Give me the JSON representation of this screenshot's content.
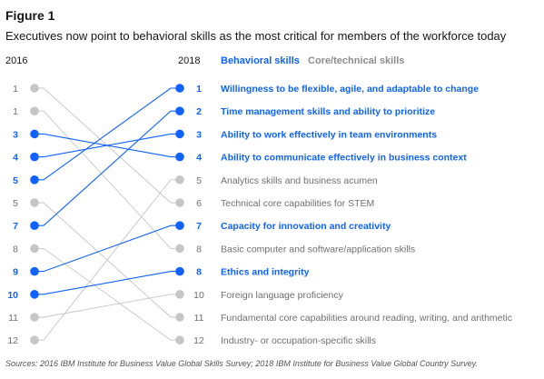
{
  "figure_label": "Figure 1",
  "title": "Executives now point to behavioral skills as the most critical for members of the workforce today",
  "year_left": "2016",
  "year_right": "2018",
  "legend": {
    "behavioral": "Behavioral skills",
    "core": "Core/technical skills"
  },
  "colors": {
    "behavioral": "#0f62fe",
    "core": "#c6c6c6",
    "core_text": "#6f6f6f"
  },
  "source": "Sources: 2016 IBM Institute for Business Value Global Skills Survey; 2018 IBM Institute for Business Value Global Country Survey.",
  "chart_data": {
    "type": "slope",
    "rank_labels_2016": [
      "1",
      "1",
      "3",
      "4",
      "5",
      "5",
      "7",
      "8",
      "9",
      "10",
      "11",
      "12"
    ],
    "rank_labels_2018": [
      "1",
      "2",
      "3",
      "4",
      "5",
      "6",
      "7",
      "8",
      "8",
      "10",
      "11",
      "12"
    ],
    "skills": [
      {
        "name": "Willingness to be flexible, agile, and adaptable to change",
        "category": "behavioral",
        "rank_2016": 5,
        "rank_2018": 1,
        "left_row": 5,
        "right_row": 1
      },
      {
        "name": "Time management skills and ability to prioritize",
        "category": "behavioral",
        "rank_2016": 7,
        "rank_2018": 2,
        "left_row": 7,
        "right_row": 2
      },
      {
        "name": "Ability to work effectively in team environments",
        "category": "behavioral",
        "rank_2016": 4,
        "rank_2018": 3,
        "left_row": 4,
        "right_row": 3
      },
      {
        "name": "Ability to communicate effectively in business context",
        "category": "behavioral",
        "rank_2016": 3,
        "rank_2018": 4,
        "left_row": 3,
        "right_row": 4
      },
      {
        "name": "Analytics skills and business acumen",
        "category": "core",
        "rank_2016": 12,
        "rank_2018": 5,
        "left_row": 12,
        "right_row": 5
      },
      {
        "name": "Technical core capabilities for STEM",
        "category": "core",
        "rank_2016": 1,
        "rank_2018": 6,
        "left_row": 1,
        "right_row": 6
      },
      {
        "name": "Capacity for innovation and creativity",
        "category": "behavioral",
        "rank_2016": 9,
        "rank_2018": 7,
        "left_row": 9,
        "right_row": 7
      },
      {
        "name": "Basic computer and software/application skills",
        "category": "core",
        "rank_2016": 1,
        "rank_2018": 8,
        "left_row": 2,
        "right_row": 8
      },
      {
        "name": "Ethics and integrity",
        "category": "behavioral",
        "rank_2016": 10,
        "rank_2018": 8,
        "left_row": 10,
        "right_row": 9
      },
      {
        "name": "Foreign language proficiency",
        "category": "core",
        "rank_2016": 11,
        "rank_2018": 10,
        "left_row": 11,
        "right_row": 10
      },
      {
        "name": "Fundamental core capabilities around reading, writing, and arithmetic",
        "category": "core",
        "rank_2016": 5,
        "rank_2018": 11,
        "left_row": 6,
        "right_row": 11
      },
      {
        "name": "Industry- or occupation-specific skills",
        "category": "core",
        "rank_2016": 8,
        "rank_2018": 12,
        "left_row": 8,
        "right_row": 12
      }
    ]
  }
}
